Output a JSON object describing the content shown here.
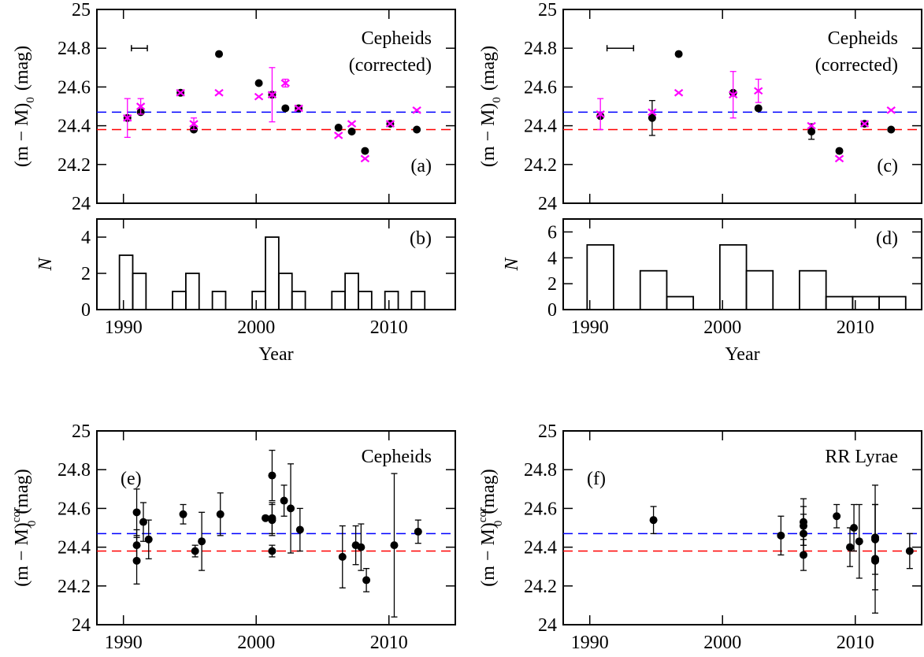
{
  "chart_data": [
    {
      "type": "errorbar",
      "panel_label": "(a)",
      "label_loc": "lower right",
      "xlim": [
        1988,
        2015
      ],
      "xticks": [
        1990,
        2000,
        2010
      ],
      "xticklabels": false,
      "ylim": [
        24,
        25
      ],
      "yticks": [
        24,
        24.2,
        24.4,
        24.6,
        24.8,
        25
      ],
      "ylabel": "(m − M)",
      "ylabel_sub": "0",
      "ylabel_unit": "(mag)",
      "hlines": [
        {
          "value": 24.47,
          "color": "#0000ff"
        },
        {
          "value": 24.38,
          "color": "#ff0000"
        }
      ],
      "xerr_sample": {
        "x": 1991.2,
        "y": 24.8,
        "xerr": 0.6
      },
      "series": [
        {
          "name": "Cepheids",
          "color": "#000000",
          "marker": "circle",
          "x": [
            1990.3,
            1991.3,
            1994.3,
            1995.3,
            1997.2,
            2000.2,
            2001.2,
            2002.2,
            2003.2,
            2006.2,
            2007.2,
            2008.2,
            2010.1,
            2012.1
          ],
          "values": [
            24.44,
            24.47,
            24.57,
            24.38,
            24.77,
            24.62,
            24.56,
            24.49,
            24.49,
            24.39,
            24.37,
            24.27,
            24.41,
            24.38
          ]
        },
        {
          "name": "(corrected)",
          "color": "#ff00ff",
          "marker": "cross",
          "x": [
            1990.3,
            1991.3,
            1994.3,
            1995.3,
            1997.2,
            2000.2,
            2001.2,
            2002.2,
            2003.2,
            2006.2,
            2007.2,
            2008.2,
            2010.1,
            2012.1
          ],
          "values": [
            24.44,
            24.5,
            24.57,
            24.41,
            24.57,
            24.55,
            24.56,
            24.62,
            24.49,
            24.35,
            24.41,
            24.23,
            24.41,
            24.48
          ],
          "errors": [
            0.1,
            0.04,
            null,
            0.03,
            null,
            null,
            0.14,
            0.02,
            null,
            null,
            null,
            null,
            null,
            null
          ]
        }
      ]
    },
    {
      "type": "histogram",
      "panel_label": "(b)",
      "label_loc": "upper right",
      "xlim": [
        1988,
        2015
      ],
      "xticks": [
        1990,
        2000,
        2010
      ],
      "xticklabels": true,
      "xlabel": "Year",
      "ylim": [
        0,
        5
      ],
      "yticks": [
        0,
        2,
        4
      ],
      "ylabel": "N",
      "color": "#000000",
      "bins": [
        1989.7,
        1990.7,
        1991.7,
        1992.7,
        1993.7,
        1994.7,
        1995.7,
        1996.7,
        1997.7,
        1998.7,
        1999.7,
        2000.7,
        2001.7,
        2002.7,
        2003.7,
        2004.7,
        2005.7,
        2006.7,
        2007.7,
        2008.7,
        2009.7,
        2010.7,
        2011.7,
        2012.7
      ],
      "values": [
        3,
        2,
        0,
        0,
        1,
        2,
        0,
        1,
        0,
        0,
        1,
        4,
        2,
        1,
        0,
        0,
        1,
        2,
        1,
        0,
        1,
        0,
        1
      ]
    },
    {
      "type": "errorbar",
      "panel_label": "(c)",
      "label_loc": "lower right",
      "xlim": [
        1988,
        2015
      ],
      "xticks": [
        1990,
        2000,
        2010
      ],
      "xticklabels": false,
      "ylim": [
        24,
        25
      ],
      "yticks": [
        24,
        24.2,
        24.4,
        24.6,
        24.8,
        25
      ],
      "ylabel": "(m − M)",
      "ylabel_sub": "0",
      "ylabel_unit": "(mag)",
      "hlines": [
        {
          "value": 24.47,
          "color": "#0000ff"
        },
        {
          "value": 24.38,
          "color": "#ff0000"
        }
      ],
      "xerr_sample": {
        "x": 1992.3,
        "y": 24.8,
        "xerr": 1
      },
      "series": [
        {
          "name": "Cepheids",
          "color": "#000000",
          "marker": "circle",
          "x": [
            1990.8,
            1994.7,
            1996.7,
            2000.8,
            2002.7,
            2006.7,
            2008.8,
            2010.7,
            2012.7
          ],
          "values": [
            24.45,
            24.44,
            24.77,
            24.57,
            24.49,
            24.37,
            24.27,
            24.41,
            24.38
          ],
          "errors": [
            null,
            0.09,
            null,
            null,
            null,
            0.04,
            null,
            null,
            null
          ]
        },
        {
          "name": "(corrected)",
          "color": "#ff00ff",
          "marker": "cross",
          "x": [
            1990.8,
            1994.7,
            1996.7,
            2000.8,
            2002.7,
            2006.7,
            2008.8,
            2010.7,
            2012.7
          ],
          "values": [
            24.46,
            24.47,
            24.57,
            24.56,
            24.58,
            24.4,
            24.23,
            24.41,
            24.48
          ],
          "errors": [
            0.08,
            null,
            null,
            0.12,
            0.06,
            null,
            null,
            null,
            null
          ]
        }
      ]
    },
    {
      "type": "histogram",
      "panel_label": "(d)",
      "label_loc": "upper right",
      "xlim": [
        1988,
        2015
      ],
      "xticks": [
        1990,
        2000,
        2010
      ],
      "xticklabels": true,
      "xlabel": "Year",
      "ylim": [
        0,
        7
      ],
      "yticks": [
        0,
        2,
        4,
        6
      ],
      "ylabel": "N",
      "color": "#000000",
      "bins": [
        1989.8,
        1991.8,
        1993.8,
        1995.8,
        1997.8,
        1999.8,
        2001.8,
        2003.8,
        2005.8,
        2007.8,
        2009.8,
        2011.8,
        2013.8
      ],
      "values": [
        5,
        0,
        3,
        1,
        0,
        5,
        3,
        0,
        3,
        1,
        1,
        1
      ]
    },
    {
      "type": "errorbar",
      "panel_label": "(e)",
      "label_loc": "upper left",
      "xlim": [
        1988,
        2015
      ],
      "xticks": [
        1990,
        2000,
        2010
      ],
      "xticklabels": true,
      "ylim": [
        24,
        25
      ],
      "yticks": [
        24,
        24.2,
        24.4,
        24.6,
        24.8,
        25
      ],
      "ylabel": "(m − M)",
      "ylabel_sub": "0",
      "ylabel_sup": "cor",
      "ylabel_unit": "(mag)",
      "hlines": [
        {
          "value": 24.47,
          "color": "#0000ff"
        },
        {
          "value": 24.38,
          "color": "#ff0000"
        }
      ],
      "series": [
        {
          "name": "Cepheids",
          "color": "#000000",
          "marker": "circle",
          "x": [
            1991.0,
            1991.0,
            1991.0,
            1991.5,
            1991.9,
            1994.5,
            1995.4,
            1995.9,
            1997.3,
            2000.7,
            2001.2,
            2001.2,
            2001.2,
            2001.2,
            2002.1,
            2002.6,
            2003.3,
            2006.5,
            2007.5,
            2007.9,
            2008.3,
            2010.4,
            2012.2
          ],
          "values": [
            24.58,
            24.41,
            24.33,
            24.53,
            24.44,
            24.57,
            24.38,
            24.43,
            24.57,
            24.55,
            24.77,
            24.55,
            24.54,
            24.38,
            24.64,
            24.6,
            24.49,
            24.35,
            24.41,
            24.4,
            24.23,
            24.41,
            24.48
          ],
          "errors": [
            0.12,
            0.08,
            0.12,
            0.1,
            0.1,
            0.05,
            0.03,
            0.15,
            0.11,
            null,
            0.13,
            0.08,
            0.08,
            0.03,
            0.08,
            0.23,
            0.11,
            0.16,
            0.1,
            0.12,
            0.06,
            0.37,
            0.06
          ]
        }
      ]
    },
    {
      "type": "errorbar",
      "panel_label": "(f)",
      "label_loc": "upper left",
      "xlim": [
        1988,
        2015
      ],
      "xticks": [
        1990,
        2000,
        2010
      ],
      "xticklabels": true,
      "ylim": [
        24,
        25
      ],
      "yticks": [
        24,
        24.2,
        24.4,
        24.6,
        24.8,
        25
      ],
      "ylabel": "(m − M)",
      "ylabel_sub": "0",
      "ylabel_sup": "cor",
      "ylabel_unit": "(mag)",
      "hlines": [
        {
          "value": 24.47,
          "color": "#0000ff"
        },
        {
          "value": 24.38,
          "color": "#ff0000"
        }
      ],
      "series": [
        {
          "name": "RR Lyrae",
          "color": "#000000",
          "marker": "circle",
          "x": [
            1994.8,
            2004.4,
            2006.1,
            2006.1,
            2006.1,
            2006.1,
            2008.6,
            2009.6,
            2009.9,
            2010.3,
            2011.5,
            2011.5,
            2011.5,
            2011.5,
            2014.1
          ],
          "values": [
            24.54,
            24.46,
            24.53,
            24.51,
            24.47,
            24.36,
            24.56,
            24.4,
            24.5,
            24.43,
            24.45,
            24.34,
            24.33,
            24.44,
            24.38
          ],
          "errors": [
            0.07,
            0.1,
            0.12,
            0.1,
            0.1,
            0.08,
            0.06,
            0.1,
            0.12,
            0.19,
            0.27,
            0.28,
            null,
            0.18,
            0.09
          ]
        }
      ]
    }
  ]
}
